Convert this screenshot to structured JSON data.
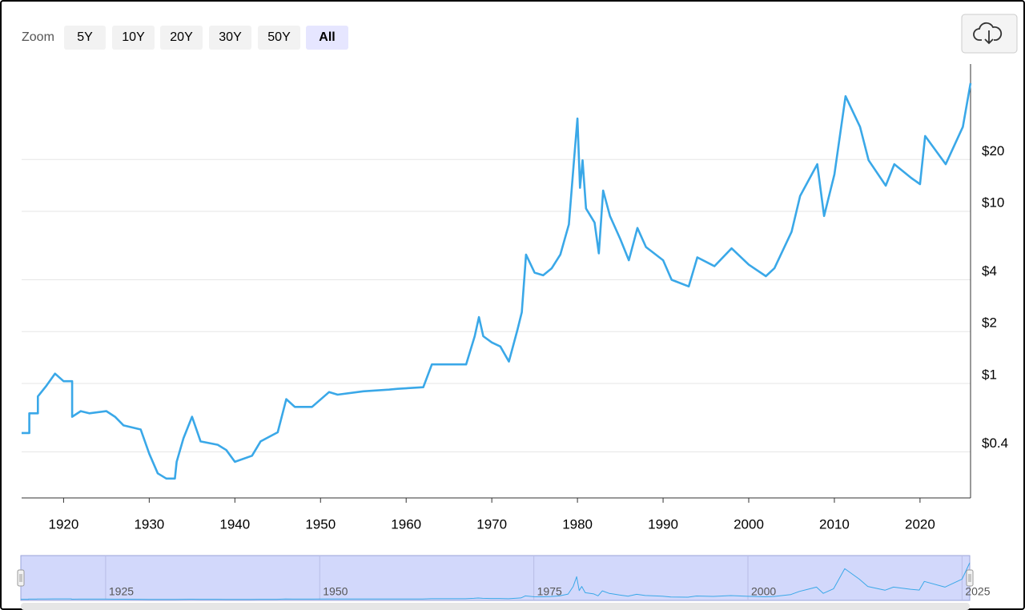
{
  "chart_data": {
    "type": "line",
    "zoom": {
      "label": "Zoom",
      "buttons": [
        "5Y",
        "10Y",
        "20Y",
        "30Y",
        "50Y",
        "All"
      ],
      "selected": 5
    },
    "log_scale": true,
    "grid": true,
    "xlim": [
      1915.1,
      2025.9
    ],
    "xticks": [
      1920,
      1930,
      1940,
      1950,
      1960,
      1970,
      1980,
      1990,
      2000,
      2010,
      2020
    ],
    "ylim": [
      0.216,
      71.8
    ],
    "yticks": [
      {
        "value": 0.4,
        "label": "$0.4"
      },
      {
        "value": 1,
        "label": "$1"
      },
      {
        "value": 2,
        "label": "$2"
      },
      {
        "value": 4,
        "label": "$4"
      },
      {
        "value": 10,
        "label": "$10"
      },
      {
        "value": 20,
        "label": "$20"
      }
    ],
    "x": [
      1915.1,
      1916,
      1916,
      1917,
      1917,
      1918,
      1919,
      1920,
      1921,
      1921,
      1922,
      1923,
      1925,
      1926,
      1927,
      1929,
      1930,
      1931,
      1932,
      1933,
      1933.2,
      1934,
      1935,
      1936,
      1938,
      1939,
      1940,
      1942,
      1943,
      1945,
      1946,
      1947,
      1949,
      1951,
      1952,
      1955,
      1958,
      1959,
      1962,
      1963,
      1967,
      1968,
      1968.5,
      1969,
      1970,
      1971,
      1972,
      1973,
      1973.5,
      1974,
      1975,
      1976,
      1977,
      1978,
      1979,
      1979.6,
      1980,
      1980.3,
      1980.6,
      1981,
      1982,
      1982.5,
      1983,
      1983.8,
      1985,
      1986,
      1987,
      1988,
      1990,
      1991,
      1993,
      1994,
      1996,
      1998,
      2000,
      2002,
      2003,
      2005,
      2006,
      2008,
      2008.8,
      2010,
      2011.3,
      2013,
      2014,
      2016,
      2017,
      2019,
      2020,
      2020.6,
      2023,
      2025,
      2025.9
    ],
    "series": [
      {
        "color": "#3aa8e8",
        "values": [
          0.515,
          0.515,
          0.67,
          0.67,
          0.84,
          0.97,
          1.14,
          1.03,
          1.03,
          0.64,
          0.69,
          0.67,
          0.69,
          0.64,
          0.57,
          0.54,
          0.39,
          0.3,
          0.28,
          0.28,
          0.35,
          0.48,
          0.64,
          0.46,
          0.44,
          0.41,
          0.35,
          0.38,
          0.46,
          0.52,
          0.81,
          0.73,
          0.73,
          0.89,
          0.86,
          0.9,
          0.92,
          0.93,
          0.95,
          1.29,
          1.29,
          1.88,
          2.43,
          1.88,
          1.73,
          1.64,
          1.34,
          2.05,
          2.59,
          5.6,
          4.4,
          4.25,
          4.67,
          5.6,
          8.4,
          19.8,
          34.6,
          13.7,
          19.8,
          10.4,
          8.6,
          5.7,
          13.2,
          9.4,
          6.9,
          5.2,
          8.0,
          6.2,
          5.2,
          4.0,
          3.66,
          5.4,
          4.8,
          6.1,
          4.9,
          4.2,
          4.67,
          7.6,
          12.3,
          18.8,
          9.4,
          16.4,
          46.7,
          31.0,
          19.8,
          14.1,
          18.8,
          15.6,
          14.4,
          27.4,
          18.8,
          31.0,
          55.6
        ]
      }
    ],
    "navigator": {
      "xticks": [
        1925,
        1950,
        1975,
        2000,
        2025
      ]
    }
  }
}
